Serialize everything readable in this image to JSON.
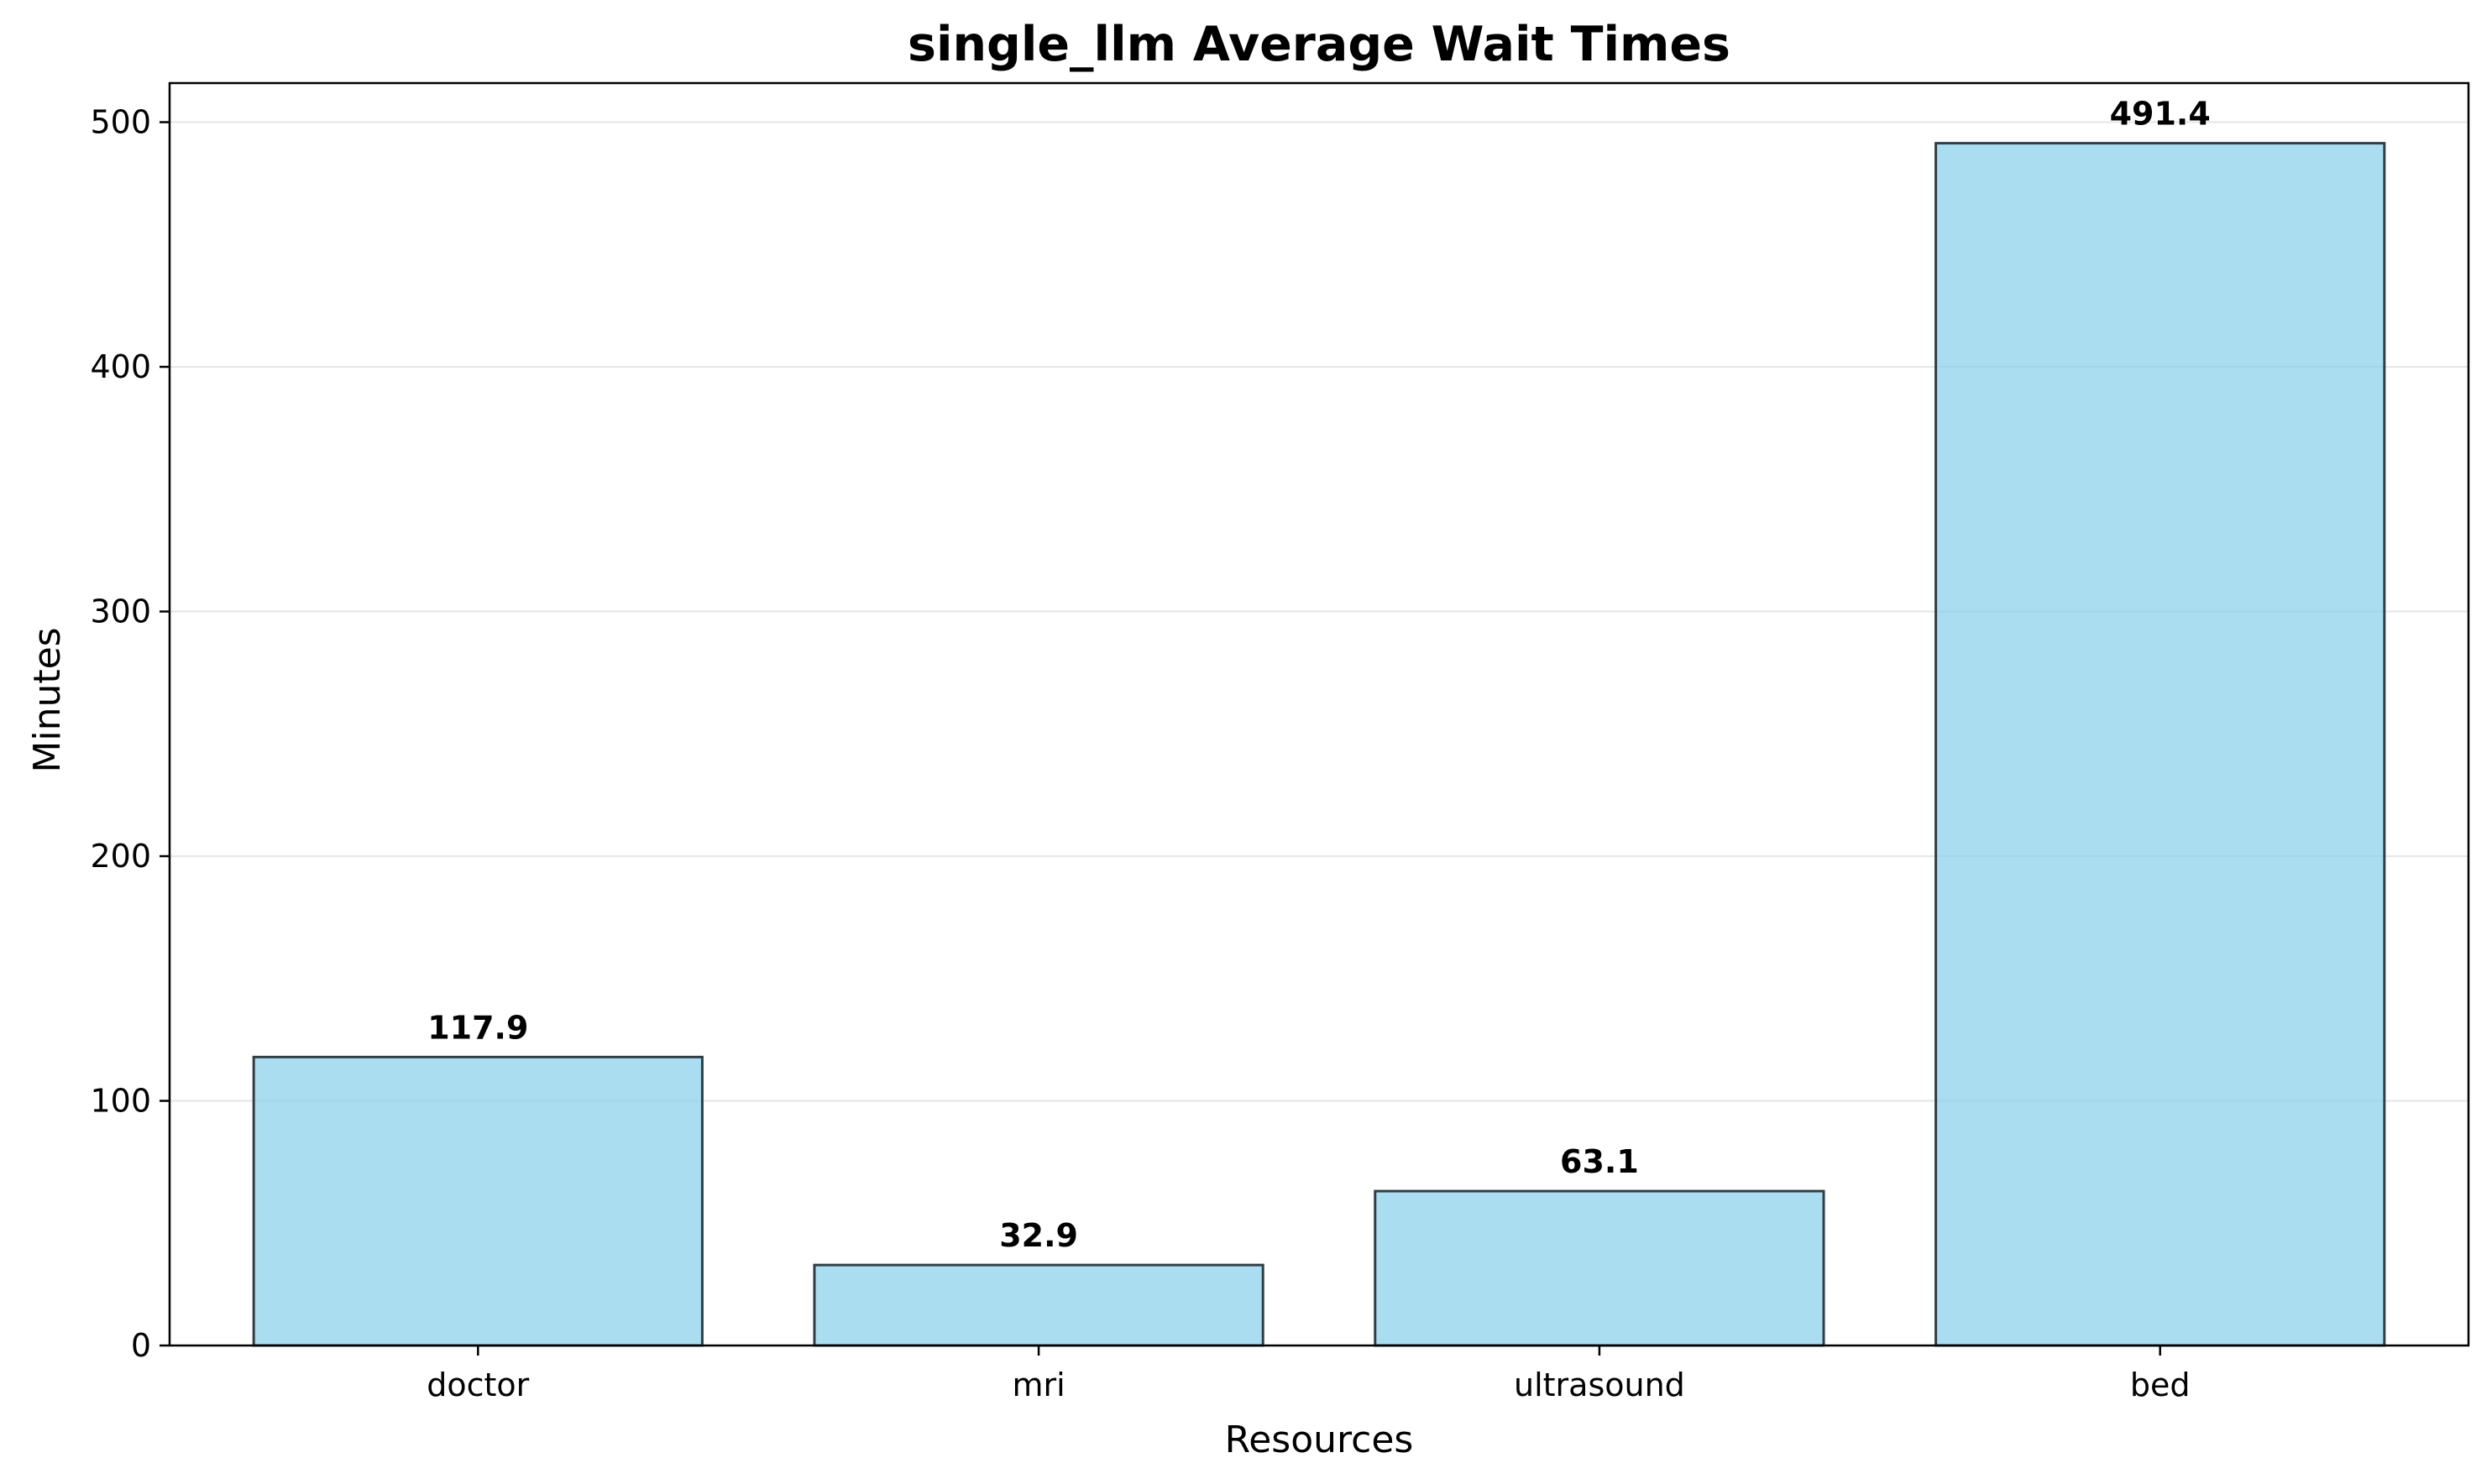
{
  "chart_data": {
    "type": "bar",
    "title": "single_llm Average Wait Times",
    "xlabel": "Resources",
    "ylabel": "Minutes",
    "categories": [
      "doctor",
      "mri",
      "ultrasound",
      "bed"
    ],
    "values": [
      117.9,
      32.9,
      63.1,
      491.4
    ],
    "value_labels": [
      "117.9",
      "32.9",
      "63.1",
      "491.4"
    ],
    "yticks": [
      0,
      100,
      200,
      300,
      400,
      500
    ],
    "ylim": [
      0,
      515.97
    ],
    "grid": "horizontal",
    "legend": "none",
    "colors": {
      "bar_fill": "#87CEEB",
      "bar_edge": "#2f3e46",
      "grid": "#e5e5e5",
      "axis": "#000000"
    }
  }
}
